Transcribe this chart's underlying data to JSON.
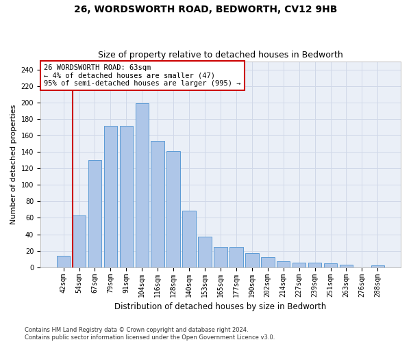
{
  "title": "26, WORDSWORTH ROAD, BEDWORTH, CV12 9HB",
  "subtitle": "Size of property relative to detached houses in Bedworth",
  "xlabel": "Distribution of detached houses by size in Bedworth",
  "ylabel": "Number of detached properties",
  "categories": [
    "42sqm",
    "54sqm",
    "67sqm",
    "79sqm",
    "91sqm",
    "104sqm",
    "116sqm",
    "128sqm",
    "140sqm",
    "153sqm",
    "165sqm",
    "177sqm",
    "190sqm",
    "202sqm",
    "214sqm",
    "227sqm",
    "239sqm",
    "251sqm",
    "263sqm",
    "276sqm",
    "288sqm"
  ],
  "values": [
    14,
    63,
    130,
    172,
    172,
    199,
    153,
    141,
    69,
    37,
    25,
    25,
    17,
    12,
    7,
    6,
    6,
    5,
    3,
    0,
    2
  ],
  "bar_color": "#aec6e8",
  "bar_edge_color": "#5b9bd5",
  "highlight_bar_index": 1,
  "highlight_bar_color": "#aec6e8",
  "highlight_bar_edge_color": "#cc0000",
  "annotation_box_text": "26 WORDSWORTH ROAD: 63sqm\n← 4% of detached houses are smaller (47)\n95% of semi-detached houses are larger (995) →",
  "annotation_box_color": "white",
  "annotation_box_edge_color": "#cc0000",
  "ylim": [
    0,
    250
  ],
  "yticks": [
    0,
    20,
    40,
    60,
    80,
    100,
    120,
    140,
    160,
    180,
    200,
    220,
    240
  ],
  "grid_color": "#d0d8e8",
  "background_color": "#eaeff7",
  "footer_line1": "Contains HM Land Registry data © Crown copyright and database right 2024.",
  "footer_line2": "Contains public sector information licensed under the Open Government Licence v3.0.",
  "title_fontsize": 10,
  "subtitle_fontsize": 9,
  "tick_fontsize": 7,
  "ylabel_fontsize": 8,
  "xlabel_fontsize": 8.5
}
